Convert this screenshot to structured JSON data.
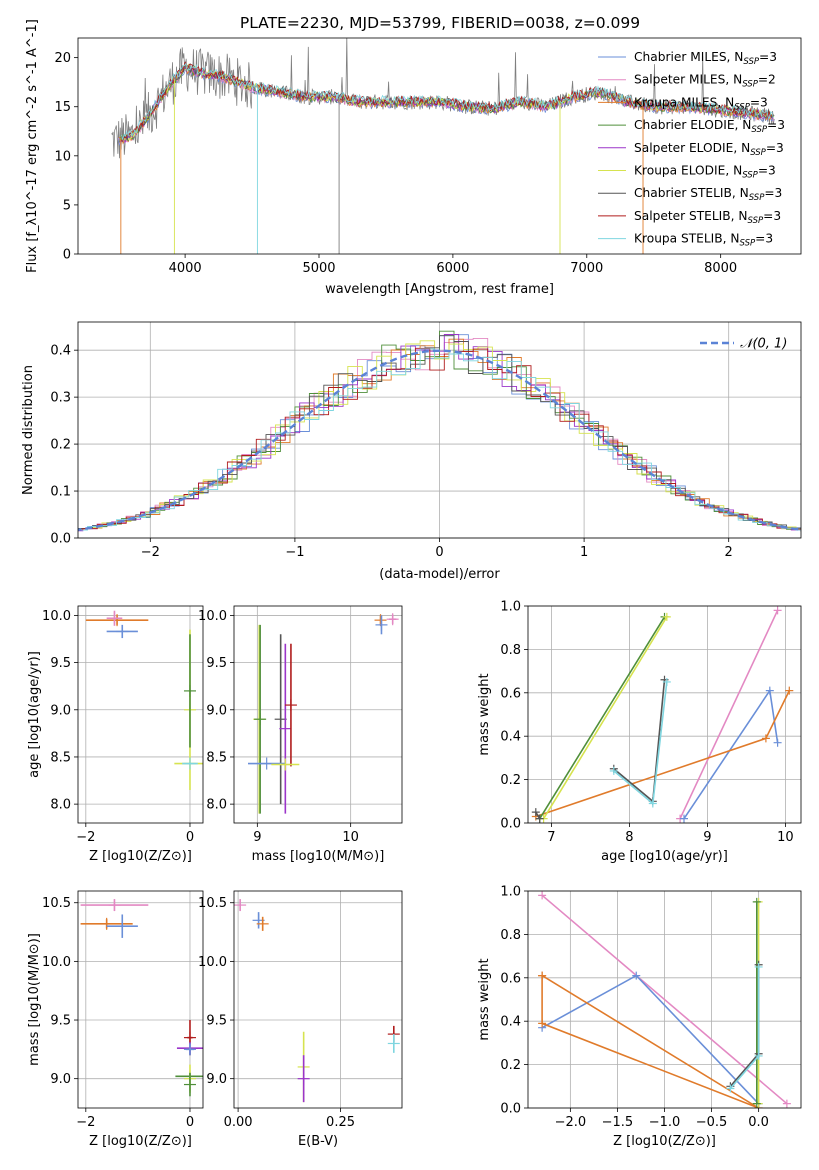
{
  "chart_data": [
    {
      "type": "line",
      "title": "PLATE=2230, MJD=53799, FIBERID=0038, z=0.099",
      "xlabel": "wavelength [Angstrom, rest frame]",
      "ylabel": "Flux [f_λ10^-17 erg cm^-2 s^-1 A^-1]",
      "xlim": [
        3200,
        8600
      ],
      "ylim": [
        0,
        22
      ],
      "xticks": [
        4000,
        5000,
        6000,
        7000,
        8000
      ],
      "yticks": [
        0,
        5,
        10,
        15,
        20
      ],
      "legend_position": "top-right",
      "series": [
        {
          "name": "Chabrier MILES, N_SSP=3",
          "color": "#6a8fd8"
        },
        {
          "name": "Salpeter MILES, N_SSP=2",
          "color": "#e389c3"
        },
        {
          "name": "Kroupa MILES, N_SSP=3",
          "color": "#e07b2b"
        },
        {
          "name": "Chabrier ELODIE, N_SSP=3",
          "color": "#4f8f3a"
        },
        {
          "name": "Salpeter ELODIE, N_SSP=3",
          "color": "#9b35c9"
        },
        {
          "name": "Kroupa ELODIE, N_SSP=3",
          "color": "#d6e34f"
        },
        {
          "name": "Chabrier STELIB, N_SSP=3",
          "color": "#555555"
        },
        {
          "name": "Salpeter STELIB, N_SSP=3",
          "color": "#b01c1c"
        },
        {
          "name": "Kroupa STELIB, N_SSP=3",
          "color": "#7fd6e0"
        }
      ],
      "spectrum_profile": {
        "x": [
          3450,
          3600,
          3700,
          3800,
          3900,
          4000,
          4100,
          4300,
          4500,
          4700,
          4900,
          5100,
          5300,
          5500,
          5700,
          5900,
          6100,
          6300,
          6500,
          6700,
          6900,
          7100,
          7300,
          7500,
          7700,
          7900,
          8100,
          8300,
          8400
        ],
        "y": [
          11.5,
          12.0,
          13.5,
          15.5,
          17.5,
          19.0,
          18.5,
          18.0,
          17.0,
          16.5,
          16.0,
          16.0,
          15.5,
          15.5,
          15.5,
          15.5,
          15.0,
          14.8,
          15.5,
          15.0,
          16.0,
          16.5,
          15.5,
          15.0,
          15.0,
          14.8,
          14.5,
          14.2,
          14.0
        ]
      }
    },
    {
      "type": "bar",
      "xlabel": "(data-model)/error",
      "ylabel": "Normed distribution",
      "xlim": [
        -2.5,
        2.5
      ],
      "ylim": [
        0,
        0.46
      ],
      "xticks": [
        -2,
        -1,
        0,
        1,
        2
      ],
      "yticks": [
        0.0,
        0.1,
        0.2,
        0.3,
        0.4
      ],
      "legend": [
        "𝒩(0, 1)"
      ],
      "legend_position": "top-right",
      "reference_curve": {
        "name": "𝒩(0, 1)",
        "mean": 0,
        "sigma": 1,
        "color": "#5b83d6"
      }
    },
    {
      "type": "scatter",
      "xlabel": "Z [log10(Z/Z⊙)]",
      "ylabel": "age  [log10(age/yr)]",
      "xlim": [
        -2.15,
        0.25
      ],
      "ylim": [
        7.8,
        10.1
      ],
      "xticks": [
        -2,
        0
      ],
      "yticks": [
        8.0,
        8.5,
        9.0,
        9.5,
        10.0
      ],
      "points": [
        {
          "x": -1.4,
          "y": 9.95,
          "xerr": 0.6,
          "yerr": 0.05,
          "color": "#e07b2b"
        },
        {
          "x": -1.45,
          "y": 9.97,
          "xerr": 0.15,
          "yerr": 0.08,
          "color": "#e389c3"
        },
        {
          "x": -1.3,
          "y": 9.83,
          "xerr": 0.3,
          "yerr": 0.07,
          "color": "#6a8fd8"
        },
        {
          "x": 0.0,
          "y": 9.0,
          "xerr": 0.02,
          "yerr": 0.85,
          "color": "#d6e34f"
        },
        {
          "x": 0.0,
          "y": 9.2,
          "xerr": 0.02,
          "yerr": 0.6,
          "color": "#4f8f3a"
        },
        {
          "x": 0.0,
          "y": 8.43,
          "xerr": 0.3,
          "yerr": 0.01,
          "color": "#d6e34f"
        },
        {
          "x": 0.0,
          "y": 8.43,
          "xerr": 0.15,
          "yerr": 0.01,
          "color": "#7fd6e0"
        }
      ]
    },
    {
      "type": "scatter",
      "xlabel": "mass [log10(M/M⊙)]",
      "ylabel": "",
      "xlim": [
        8.75,
        10.55
      ],
      "ylim": [
        7.8,
        10.1
      ],
      "xticks": [
        9,
        10
      ],
      "yticks": [
        8.0,
        8.5,
        9.0,
        9.5,
        10.0
      ],
      "points": [
        {
          "x": 9.02,
          "y": 8.9,
          "xerr": 0.0,
          "yerr": 1.0,
          "color": "#d6e34f"
        },
        {
          "x": 9.03,
          "y": 8.9,
          "xerr": 0.0,
          "yerr": 1.0,
          "color": "#4f8f3a"
        },
        {
          "x": 9.25,
          "y": 8.9,
          "xerr": 0.0,
          "yerr": 0.9,
          "color": "#555555"
        },
        {
          "x": 9.3,
          "y": 8.8,
          "xerr": 0.0,
          "yerr": 0.9,
          "color": "#9b35c9"
        },
        {
          "x": 9.36,
          "y": 9.05,
          "xerr": 0.0,
          "yerr": 0.65,
          "color": "#b01c1c"
        },
        {
          "x": 9.1,
          "y": 8.43,
          "xerr": 0.2,
          "yerr": 0.0,
          "color": "#6a8fd8"
        },
        {
          "x": 9.3,
          "y": 8.42,
          "xerr": 0.15,
          "yerr": 0.0,
          "color": "#d6e34f"
        },
        {
          "x": 10.32,
          "y": 9.95,
          "xerr": 0.0,
          "yerr": 0.05,
          "color": "#e07b2b"
        },
        {
          "x": 10.45,
          "y": 9.96,
          "xerr": 0.04,
          "yerr": 0.05,
          "color": "#e389c3"
        },
        {
          "x": 10.33,
          "y": 9.9,
          "xerr": 0.0,
          "yerr": 0.1,
          "color": "#6a8fd8"
        }
      ]
    },
    {
      "type": "line",
      "xlabel": "age  [log10(age/yr)]",
      "ylabel": "mass weight",
      "xlim": [
        6.7,
        10.2
      ],
      "ylim": [
        0,
        1
      ],
      "xticks": [
        7,
        8,
        9,
        10
      ],
      "yticks": [
        0.0,
        0.2,
        0.4,
        0.6,
        0.8,
        1.0
      ],
      "series": [
        {
          "color": "#e389c3",
          "x": [
            8.65,
            9.9
          ],
          "y": [
            0.02,
            0.98
          ]
        },
        {
          "color": "#6a8fd8",
          "x": [
            8.7,
            9.8,
            9.9
          ],
          "y": [
            0.02,
            0.61,
            0.37
          ]
        },
        {
          "color": "#e07b2b",
          "x": [
            6.8,
            9.75,
            10.05
          ],
          "y": [
            0.03,
            0.39,
            0.61
          ]
        },
        {
          "color": "#4f8f3a",
          "x": [
            6.85,
            8.45
          ],
          "y": [
            0.02,
            0.95
          ]
        },
        {
          "color": "#d6e34f",
          "x": [
            6.9,
            8.48
          ],
          "y": [
            0.02,
            0.95
          ]
        },
        {
          "color": "#555555",
          "x": [
            6.8,
            6.85
          ],
          "y": [
            0.05,
            0.02
          ]
        },
        {
          "color": "#555555",
          "x": [
            7.8,
            8.3,
            8.45
          ],
          "y": [
            0.25,
            0.1,
            0.66
          ]
        },
        {
          "color": "#7fd6e0",
          "x": [
            7.8,
            8.3,
            8.48
          ],
          "y": [
            0.24,
            0.09,
            0.65
          ]
        }
      ]
    },
    {
      "type": "scatter",
      "xlabel": "Z [log10(Z/Z⊙)]",
      "ylabel": "mass [log10(M/M⊙)]",
      "xlim": [
        -2.15,
        0.25
      ],
      "ylim": [
        8.75,
        10.6
      ],
      "xticks": [
        -2,
        0
      ],
      "yticks": [
        9.0,
        9.5,
        10.0,
        10.5
      ],
      "points": [
        {
          "x": -1.45,
          "y": 10.48,
          "xerr": 0.65,
          "yerr": 0.05,
          "color": "#e389c3"
        },
        {
          "x": -1.6,
          "y": 10.32,
          "xerr": 0.5,
          "yerr": 0.04,
          "color": "#e07b2b"
        },
        {
          "x": -1.3,
          "y": 10.3,
          "xerr": 0.3,
          "yerr": 0.1,
          "color": "#6a8fd8"
        },
        {
          "x": 0.0,
          "y": 9.35,
          "xerr": 0.05,
          "yerr": 0.15,
          "color": "#b01c1c"
        },
        {
          "x": 0.0,
          "y": 9.26,
          "xerr": 0.25,
          "yerr": 0.05,
          "color": "#9b35c9"
        },
        {
          "x": 0.0,
          "y": 9.25,
          "xerr": 0.08,
          "yerr": 0.05,
          "color": "#6a8fd8"
        },
        {
          "x": 0.0,
          "y": 9.02,
          "xerr": 0.28,
          "yerr": 0.02,
          "color": "#4f8f3a"
        },
        {
          "x": 0.0,
          "y": 9.0,
          "xerr": 0.0,
          "yerr": 0.12,
          "color": "#d6e34f"
        },
        {
          "x": 0.0,
          "y": 8.95,
          "xerr": 0.0,
          "yerr": 0.1,
          "color": "#4f8f3a"
        }
      ]
    },
    {
      "type": "scatter",
      "xlabel": "E(B-V)",
      "ylabel": "",
      "xlim": [
        -0.01,
        0.4
      ],
      "ylim": [
        8.75,
        10.6
      ],
      "xticks": [
        0.0,
        0.25
      ],
      "xticklabels": [
        "0.00",
        "0.25"
      ],
      "yticks": [
        9.0,
        9.5,
        10.0,
        10.5
      ],
      "points": [
        {
          "x": 0.005,
          "y": 10.48,
          "xerr": 0.0,
          "yerr": 0.05,
          "color": "#e389c3"
        },
        {
          "x": 0.05,
          "y": 10.35,
          "xerr": 0.0,
          "yerr": 0.07,
          "color": "#6a8fd8"
        },
        {
          "x": 0.06,
          "y": 10.32,
          "xerr": 0.0,
          "yerr": 0.06,
          "color": "#e07b2b"
        },
        {
          "x": 0.16,
          "y": 9.1,
          "xerr": 0.0,
          "yerr": 0.3,
          "color": "#d6e34f"
        },
        {
          "x": 0.16,
          "y": 9.0,
          "xerr": 0.0,
          "yerr": 0.2,
          "color": "#9b35c9"
        },
        {
          "x": 0.38,
          "y": 9.38,
          "xerr": 0.0,
          "yerr": 0.07,
          "color": "#b01c1c"
        },
        {
          "x": 0.38,
          "y": 9.3,
          "xerr": 0.0,
          "yerr": 0.08,
          "color": "#7fd6e0"
        }
      ]
    },
    {
      "type": "line",
      "xlabel": "Z [log10(Z/Z⊙)]",
      "ylabel": "mass weight",
      "xlim": [
        -2.45,
        0.45
      ],
      "ylim": [
        0,
        1
      ],
      "xticks": [
        -2.0,
        -1.5,
        -1.0,
        -0.5,
        0.0
      ],
      "xticklabels": [
        "−2.0",
        "−1.5",
        "−1.0",
        "−0.5",
        "0.0"
      ],
      "yticks": [
        0.0,
        0.2,
        0.4,
        0.6,
        0.8,
        1.0
      ],
      "series": [
        {
          "color": "#e389c3",
          "x": [
            -2.3,
            0.3
          ],
          "y": [
            0.98,
            0.02
          ]
        },
        {
          "color": "#6a8fd8",
          "x": [
            -2.3,
            -1.3,
            0.0
          ],
          "y": [
            0.37,
            0.61,
            0.02
          ]
        },
        {
          "color": "#e07b2b",
          "x": [
            -2.3,
            -2.3,
            0.0,
            -2.3
          ],
          "y": [
            0.61,
            0.39,
            0.0,
            0.61
          ]
        },
        {
          "color": "#d6e34f",
          "x": [
            0.0,
            0.0
          ],
          "y": [
            0.02,
            0.95
          ]
        },
        {
          "color": "#4f8f3a",
          "x": [
            -0.02,
            -0.02
          ],
          "y": [
            0.02,
            0.95
          ]
        },
        {
          "color": "#555555",
          "x": [
            -0.3,
            0.0,
            0.0
          ],
          "y": [
            0.1,
            0.25,
            0.66
          ]
        },
        {
          "color": "#7fd6e0",
          "x": [
            -0.3,
            0.0,
            0.0
          ],
          "y": [
            0.09,
            0.24,
            0.65
          ]
        }
      ]
    }
  ]
}
